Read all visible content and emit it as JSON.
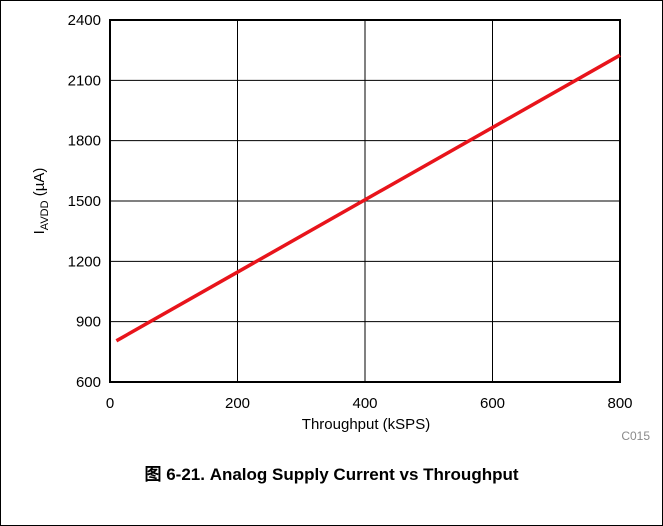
{
  "chart_data": {
    "type": "line",
    "x": [
      10,
      800
    ],
    "series": [
      {
        "values": [
          805,
          2225
        ],
        "color": "#e8141b"
      }
    ],
    "xlim": [
      0,
      800
    ],
    "ylim": [
      600,
      2400
    ],
    "x_ticks": [
      "0",
      "200",
      "400",
      "600",
      "800"
    ],
    "y_ticks": [
      "600",
      "900",
      "1200",
      "1500",
      "1800",
      "2100",
      "2400"
    ],
    "xlabel": "Throughput (kSPS)",
    "ylabel": {
      "main": "I",
      "sub": "AVDD",
      "unit": " (µA)"
    },
    "grid": true,
    "figure_code": "C015"
  },
  "caption": {
    "prefix": "图",
    "text": "6-21. Analog Supply Current vs Throughput"
  }
}
